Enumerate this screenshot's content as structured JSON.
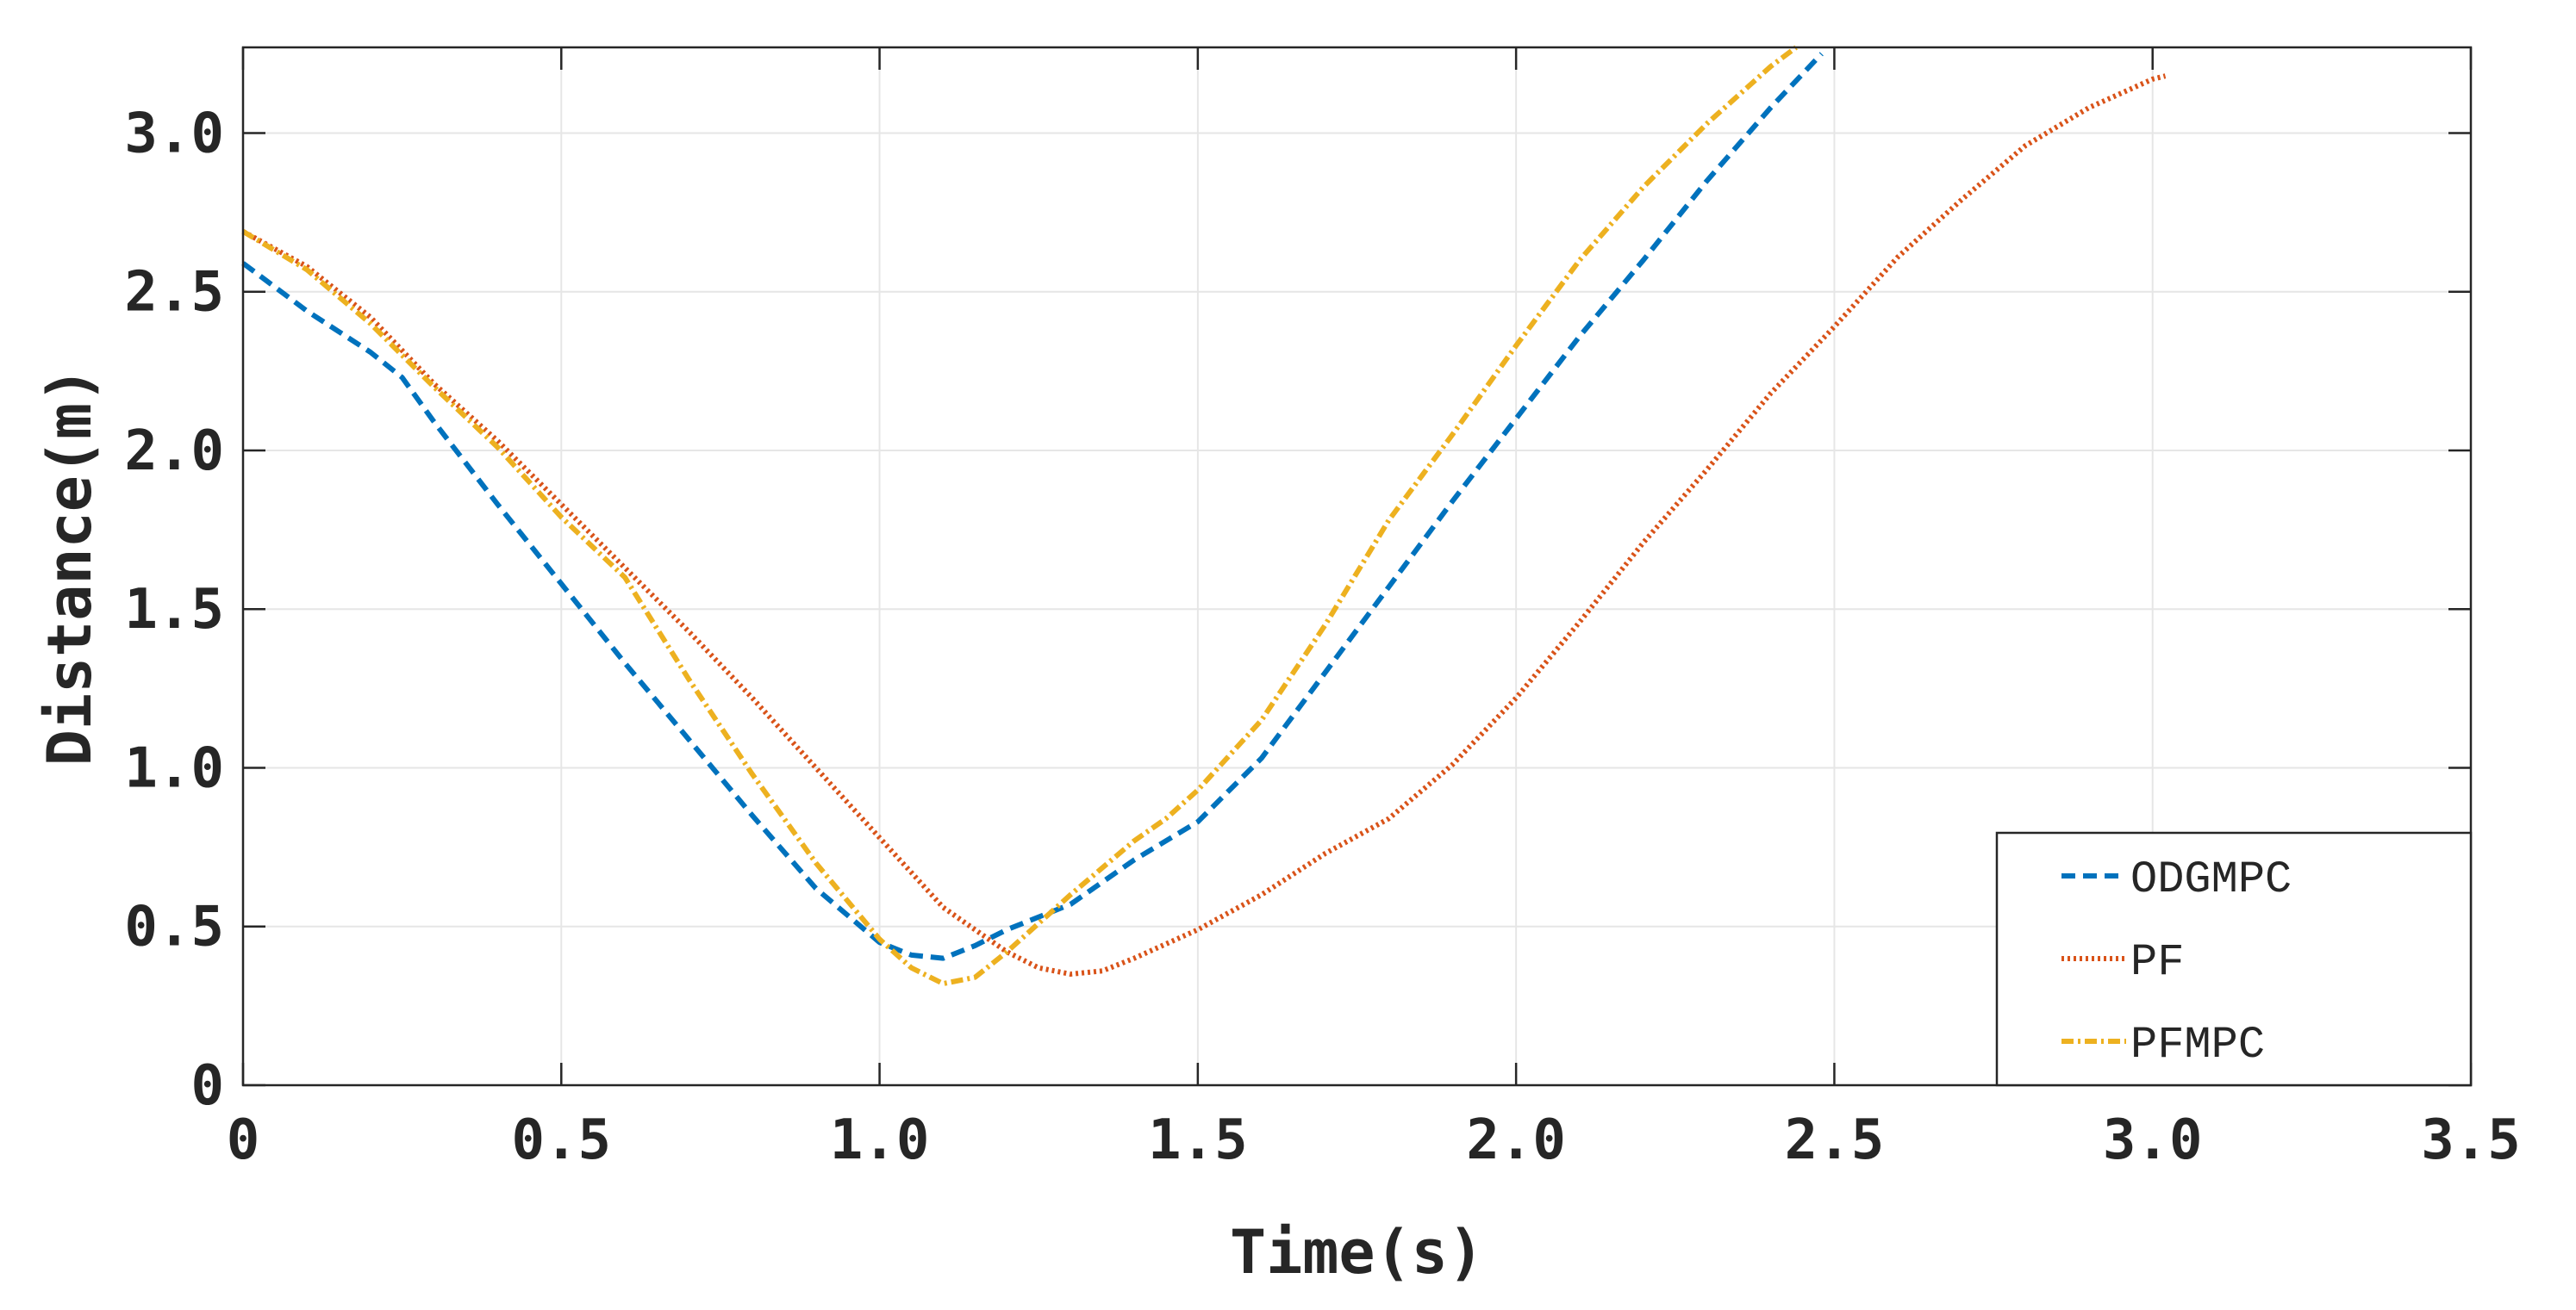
{
  "chart_data": {
    "type": "line",
    "title": "",
    "xlabel": "Time(s)",
    "ylabel": "Distance(m)",
    "xlim": [
      0,
      3.5
    ],
    "ylim": [
      0,
      3.27
    ],
    "grid": true,
    "legend_position": "bottom-right",
    "x_ticks": [
      0,
      0.5,
      1.0,
      1.5,
      2.0,
      2.5,
      3.0,
      3.5
    ],
    "x_tick_labels": [
      "0",
      "0.5",
      "1.0",
      "1.5",
      "2.0",
      "2.5",
      "3.0",
      "3.5"
    ],
    "y_ticks": [
      0,
      0.5,
      1.0,
      1.5,
      2.0,
      2.5,
      3.0
    ],
    "y_tick_labels": [
      "0",
      "0.5",
      "1.0",
      "1.5",
      "2.0",
      "2.5",
      "3.0"
    ],
    "series": [
      {
        "name": "ODGMPC",
        "color": "#0072BD",
        "dash": "dashed",
        "x": [
          0,
          0.1,
          0.2,
          0.25,
          0.3,
          0.4,
          0.5,
          0.6,
          0.7,
          0.8,
          0.9,
          1.0,
          1.05,
          1.1,
          1.15,
          1.2,
          1.3,
          1.4,
          1.5,
          1.6,
          1.7,
          1.8,
          1.9,
          2.0,
          2.1,
          2.2,
          2.3,
          2.4,
          2.48
        ],
        "y": [
          2.59,
          2.44,
          2.31,
          2.23,
          2.09,
          1.83,
          1.58,
          1.33,
          1.09,
          0.85,
          0.62,
          0.45,
          0.41,
          0.4,
          0.44,
          0.49,
          0.57,
          0.71,
          0.83,
          1.03,
          1.3,
          1.57,
          1.84,
          2.1,
          2.36,
          2.6,
          2.85,
          3.08,
          3.25
        ]
      },
      {
        "name": "PF",
        "color": "#D95319",
        "dash": "dotted",
        "x": [
          0,
          0.1,
          0.2,
          0.3,
          0.4,
          0.5,
          0.6,
          0.7,
          0.8,
          0.9,
          1.0,
          1.1,
          1.2,
          1.25,
          1.3,
          1.35,
          1.4,
          1.5,
          1.6,
          1.7,
          1.8,
          1.9,
          2.0,
          2.1,
          2.2,
          2.3,
          2.4,
          2.5,
          2.6,
          2.7,
          2.8,
          2.9,
          3.0,
          3.02
        ],
        "y": [
          2.69,
          2.58,
          2.42,
          2.21,
          2.03,
          1.83,
          1.63,
          1.43,
          1.22,
          1.0,
          0.78,
          0.56,
          0.42,
          0.37,
          0.35,
          0.36,
          0.4,
          0.49,
          0.6,
          0.73,
          0.84,
          1.01,
          1.22,
          1.46,
          1.71,
          1.94,
          2.18,
          2.39,
          2.61,
          2.79,
          2.96,
          3.08,
          3.17,
          3.18
        ]
      },
      {
        "name": "PFMPC",
        "color": "#EDB120",
        "dash": "dashdot",
        "x": [
          0,
          0.1,
          0.2,
          0.3,
          0.4,
          0.5,
          0.6,
          0.7,
          0.8,
          0.9,
          1.0,
          1.05,
          1.1,
          1.15,
          1.2,
          1.3,
          1.4,
          1.45,
          1.5,
          1.6,
          1.7,
          1.8,
          1.9,
          2.0,
          2.1,
          2.2,
          2.3,
          2.4,
          2.44
        ],
        "y": [
          2.69,
          2.57,
          2.4,
          2.2,
          2.01,
          1.79,
          1.6,
          1.28,
          0.98,
          0.7,
          0.46,
          0.37,
          0.32,
          0.34,
          0.42,
          0.6,
          0.77,
          0.84,
          0.93,
          1.15,
          1.45,
          1.78,
          2.05,
          2.33,
          2.6,
          2.83,
          3.03,
          3.21,
          3.27
        ]
      }
    ]
  }
}
